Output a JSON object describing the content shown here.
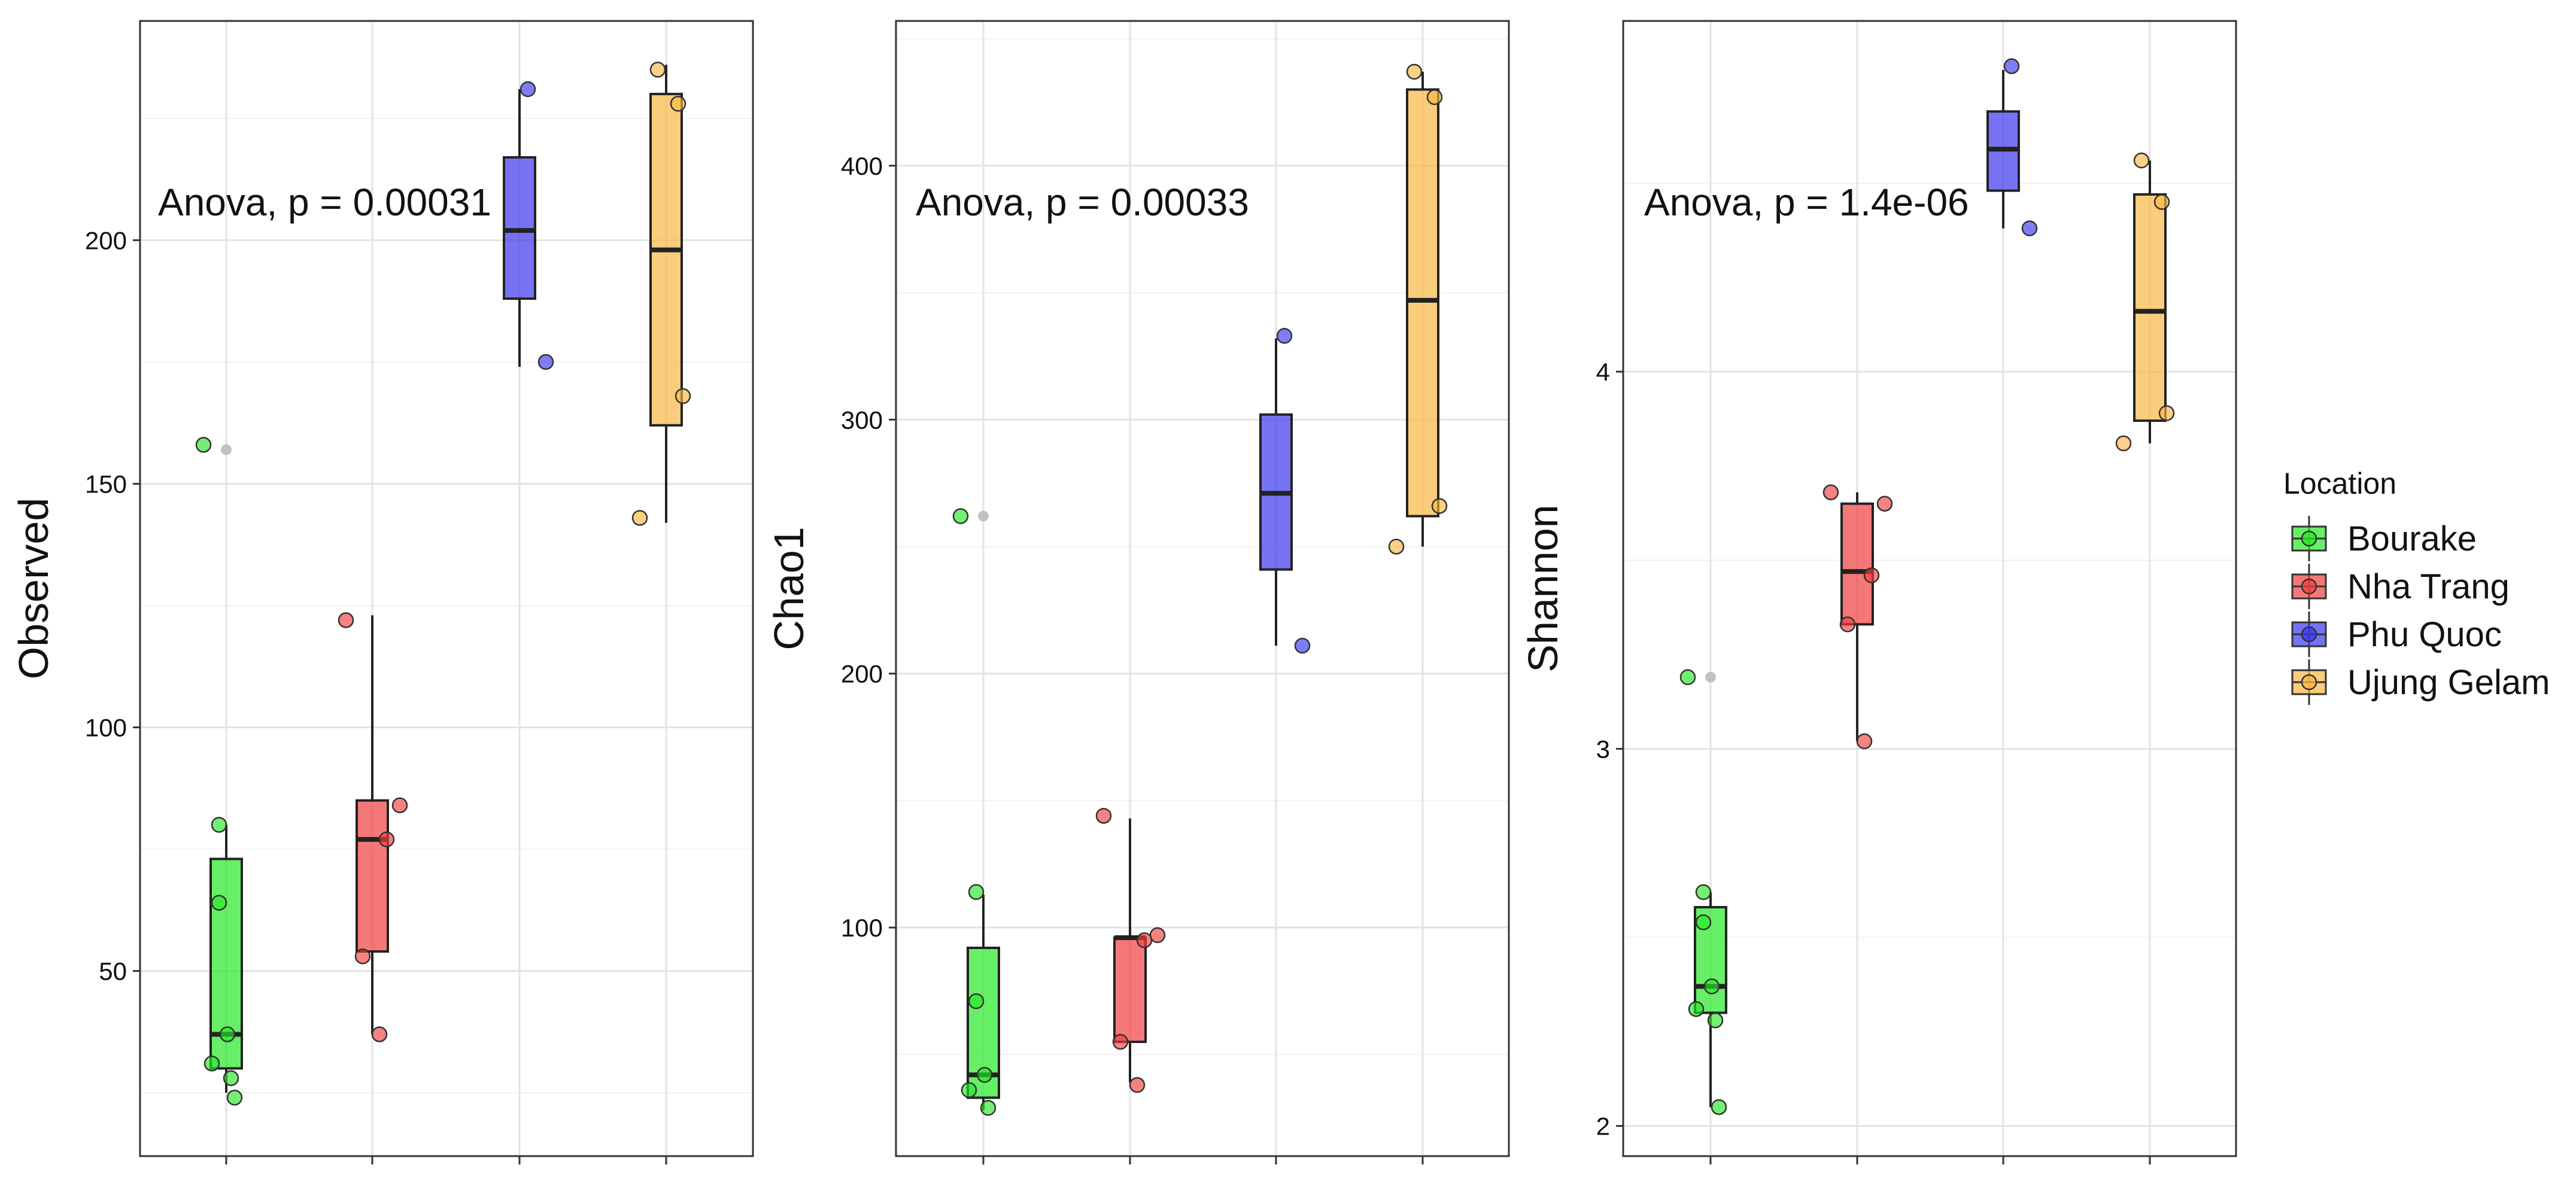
{
  "legend": {
    "title": "Location",
    "items": [
      {
        "label": "Bourake",
        "color": "#27E827"
      },
      {
        "label": "Nha Trang",
        "color": "#F13F3F"
      },
      {
        "label": "Phu Quoc",
        "color": "#3A37F0"
      },
      {
        "label": "Ujung Gelam",
        "color": "#F7B844"
      }
    ]
  },
  "chart_data": [
    {
      "type": "box",
      "ylabel": "Observed",
      "annotation": "Anova, p = 0.00031",
      "ylim": [
        12,
        245
      ],
      "yticks": [
        50,
        100,
        150,
        200
      ],
      "categories": [
        "Bourake",
        "Nha Trang",
        "Phu Quoc",
        "Ujung Gelam"
      ],
      "xticks_labeled": false,
      "grid": true,
      "boxes": [
        {
          "q1": 30,
          "median": 37,
          "q3": 73,
          "whisker_low": 25,
          "whisker_high": 80,
          "outliers": [
            157
          ]
        },
        {
          "q1": 54,
          "median": 77,
          "q3": 85,
          "whisker_low": 37,
          "whisker_high": 123,
          "outliers": []
        },
        {
          "q1": 188,
          "median": 202,
          "q3": 217,
          "whisker_low": 174,
          "whisker_high": 231,
          "outliers": []
        },
        {
          "q1": 162,
          "median": 198,
          "q3": 230,
          "whisker_low": 142,
          "whisker_high": 236,
          "outliers": []
        }
      ],
      "points": [
        [
          158,
          80,
          64,
          37,
          31,
          28,
          24
        ],
        [
          122,
          84,
          77,
          53,
          37
        ],
        [
          231,
          175
        ],
        [
          235,
          228,
          168,
          143
        ]
      ]
    },
    {
      "type": "box",
      "ylabel": "Chao1",
      "annotation": "Anova, p = 0.00033",
      "ylim": [
        10,
        457
      ],
      "yticks": [
        100,
        200,
        300,
        400
      ],
      "categories": [
        "Bourake",
        "Nha Trang",
        "Phu Quoc",
        "Ujung Gelam"
      ],
      "xticks_labeled": false,
      "grid": true,
      "boxes": [
        {
          "q1": 33,
          "median": 42,
          "q3": 92,
          "whisker_low": 28,
          "whisker_high": 113,
          "outliers": [
            262
          ]
        },
        {
          "q1": 55,
          "median": 96,
          "q3": 96,
          "whisker_low": 39,
          "whisker_high": 143,
          "outliers": []
        },
        {
          "q1": 241,
          "median": 271,
          "q3": 302,
          "whisker_low": 211,
          "whisker_high": 332,
          "outliers": []
        },
        {
          "q1": 262,
          "median": 347,
          "q3": 430,
          "whisker_low": 250,
          "whisker_high": 437,
          "outliers": []
        }
      ],
      "points": [
        [
          262,
          114,
          71,
          42,
          36,
          29
        ],
        [
          144,
          97,
          95,
          55,
          38
        ],
        [
          333,
          211
        ],
        [
          437,
          427,
          266,
          250
        ]
      ]
    },
    {
      "type": "box",
      "ylabel": "Shannon",
      "annotation": "Anova, p = 1.4e-06",
      "ylim": [
        1.92,
        4.93
      ],
      "yticks": [
        2,
        3,
        4
      ],
      "categories": [
        "Bourake",
        "Nha Trang",
        "Phu Quoc",
        "Ujung Gelam"
      ],
      "xticks_labeled": false,
      "grid": true,
      "boxes": [
        {
          "q1": 2.3,
          "median": 2.37,
          "q3": 2.58,
          "whisker_low": 2.05,
          "whisker_high": 2.62,
          "outliers": [
            3.19
          ]
        },
        {
          "q1": 3.33,
          "median": 3.47,
          "q3": 3.65,
          "whisker_low": 3.02,
          "whisker_high": 3.68,
          "outliers": []
        },
        {
          "q1": 4.48,
          "median": 4.59,
          "q3": 4.69,
          "whisker_low": 4.38,
          "whisker_high": 4.8,
          "outliers": []
        },
        {
          "q1": 3.87,
          "median": 4.16,
          "q3": 4.47,
          "whisker_low": 3.81,
          "whisker_high": 4.56,
          "outliers": []
        }
      ],
      "points": [
        [
          3.19,
          2.62,
          2.54,
          2.37,
          2.31,
          2.28,
          2.05
        ],
        [
          3.68,
          3.65,
          3.46,
          3.33,
          3.02
        ],
        [
          4.81,
          4.38
        ],
        [
          4.56,
          4.45,
          3.89,
          3.81
        ]
      ]
    }
  ]
}
